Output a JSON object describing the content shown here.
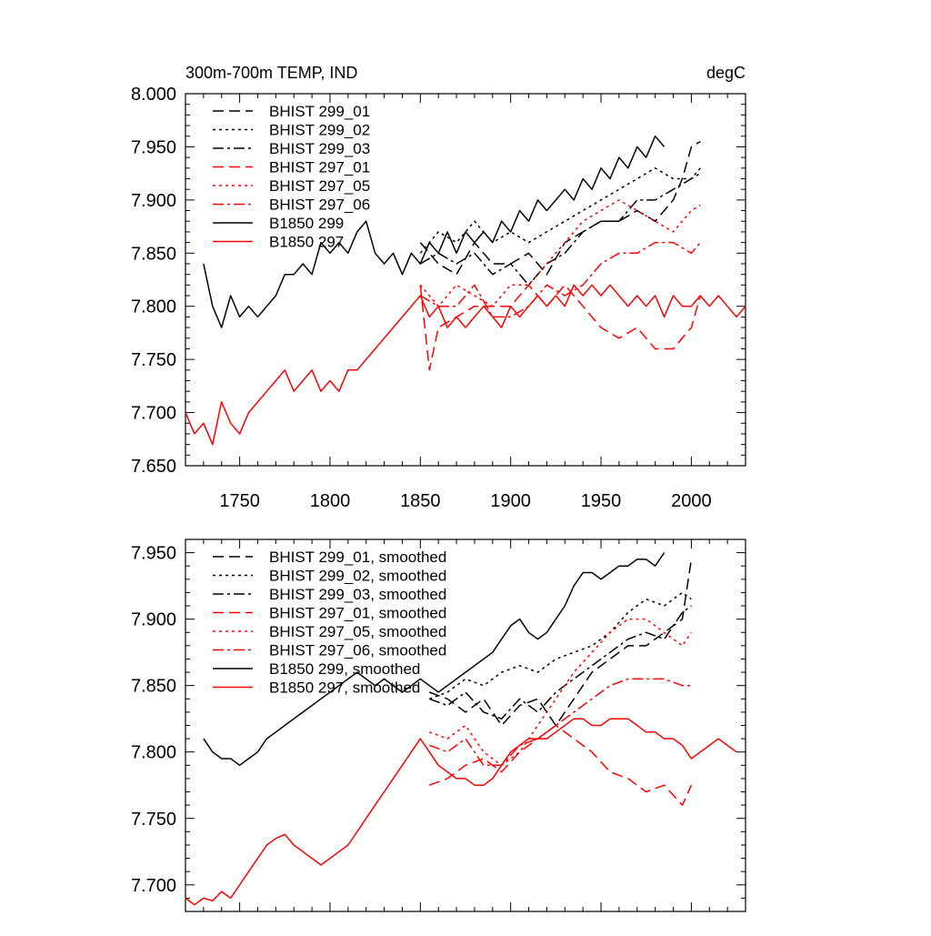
{
  "chart_data": [
    {
      "type": "line",
      "title_left": "300m-700m TEMP, IND",
      "title_right": "degC",
      "xlabel": "",
      "ylabel": "",
      "xlim": [
        1720,
        2030
      ],
      "ylim": [
        7.65,
        8.0
      ],
      "xticks": [
        1750,
        1800,
        1850,
        1900,
        1950,
        2000
      ],
      "xtick_labels": [
        "1750",
        "1800",
        "1850",
        "1900",
        "1950",
        "2000"
      ],
      "yticks": [
        7.65,
        7.7,
        7.75,
        7.8,
        7.85,
        7.9,
        7.95,
        8.0
      ],
      "ytick_labels": [
        "7.650",
        "7.700",
        "7.750",
        "7.800",
        "7.850",
        "7.900",
        "7.950",
        "8.000"
      ],
      "legend_position": "top-left",
      "series": [
        {
          "name": "BHIST 299_01",
          "color": "#000000",
          "dash": "dash",
          "x": [
            1850,
            1860,
            1870,
            1880,
            1890,
            1900,
            1910,
            1920,
            1930,
            1940,
            1950,
            1960,
            1970,
            1980,
            1990,
            1995,
            2000,
            2005
          ],
          "y": [
            7.86,
            7.84,
            7.83,
            7.86,
            7.84,
            7.84,
            7.85,
            7.83,
            7.86,
            7.87,
            7.88,
            7.88,
            7.89,
            7.88,
            7.9,
            7.92,
            7.95,
            7.955
          ]
        },
        {
          "name": "BHIST 299_02",
          "color": "#000000",
          "dash": "dot",
          "x": [
            1850,
            1860,
            1870,
            1880,
            1890,
            1900,
            1910,
            1920,
            1930,
            1940,
            1950,
            1960,
            1970,
            1980,
            1990,
            2000,
            2005
          ],
          "y": [
            7.85,
            7.87,
            7.86,
            7.88,
            7.86,
            7.87,
            7.86,
            7.87,
            7.88,
            7.89,
            7.9,
            7.91,
            7.92,
            7.93,
            7.92,
            7.92,
            7.93
          ]
        },
        {
          "name": "BHIST 299_03",
          "color": "#000000",
          "dash": "dashdot",
          "x": [
            1850,
            1860,
            1870,
            1880,
            1890,
            1900,
            1910,
            1920,
            1930,
            1940,
            1950,
            1960,
            1970,
            1980,
            1990,
            2000,
            2005
          ],
          "y": [
            7.84,
            7.85,
            7.84,
            7.85,
            7.83,
            7.84,
            7.82,
            7.84,
            7.85,
            7.87,
            7.88,
            7.88,
            7.9,
            7.9,
            7.91,
            7.92,
            7.925
          ]
        },
        {
          "name": "BHIST 297_01",
          "color": "#ff0000",
          "dash": "dash",
          "x": [
            1850,
            1855,
            1860,
            1870,
            1880,
            1890,
            1900,
            1910,
            1920,
            1930,
            1940,
            1950,
            1960,
            1970,
            1980,
            1990,
            2000,
            2005
          ],
          "y": [
            7.82,
            7.74,
            7.78,
            7.79,
            7.8,
            7.8,
            7.8,
            7.82,
            7.8,
            7.82,
            7.8,
            7.78,
            7.77,
            7.78,
            7.76,
            7.76,
            7.78,
            7.81
          ]
        },
        {
          "name": "BHIST 297_05",
          "color": "#ff0000",
          "dash": "dot",
          "x": [
            1850,
            1860,
            1870,
            1880,
            1890,
            1900,
            1910,
            1920,
            1930,
            1940,
            1950,
            1960,
            1970,
            1980,
            1990,
            2000,
            2005
          ],
          "y": [
            7.82,
            7.8,
            7.82,
            7.81,
            7.8,
            7.82,
            7.82,
            7.84,
            7.86,
            7.88,
            7.89,
            7.9,
            7.89,
            7.88,
            7.87,
            7.89,
            7.895
          ]
        },
        {
          "name": "BHIST 297_06",
          "color": "#ff0000",
          "dash": "dashdot",
          "x": [
            1850,
            1860,
            1870,
            1880,
            1890,
            1900,
            1910,
            1920,
            1930,
            1940,
            1950,
            1960,
            1970,
            1980,
            1990,
            2000,
            2005
          ],
          "y": [
            7.81,
            7.8,
            7.8,
            7.82,
            7.79,
            7.79,
            7.8,
            7.82,
            7.81,
            7.82,
            7.84,
            7.85,
            7.85,
            7.86,
            7.86,
            7.85,
            7.86
          ]
        },
        {
          "name": "B1850 299",
          "color": "#000000",
          "dash": "solid",
          "x": [
            1730,
            1735,
            1740,
            1745,
            1750,
            1755,
            1760,
            1765,
            1770,
            1775,
            1780,
            1785,
            1790,
            1795,
            1800,
            1805,
            1810,
            1815,
            1820,
            1825,
            1830,
            1835,
            1840,
            1845,
            1850,
            1855,
            1860,
            1865,
            1870,
            1875,
            1880,
            1885,
            1890,
            1895,
            1900,
            1905,
            1910,
            1915,
            1920,
            1925,
            1930,
            1935,
            1940,
            1945,
            1950,
            1955,
            1960,
            1965,
            1970,
            1975,
            1980,
            1985
          ],
          "y": [
            7.84,
            7.8,
            7.78,
            7.81,
            7.79,
            7.8,
            7.79,
            7.8,
            7.81,
            7.83,
            7.83,
            7.84,
            7.83,
            7.86,
            7.85,
            7.86,
            7.85,
            7.87,
            7.88,
            7.85,
            7.84,
            7.85,
            7.83,
            7.85,
            7.84,
            7.86,
            7.85,
            7.87,
            7.85,
            7.87,
            7.86,
            7.87,
            7.86,
            7.88,
            7.87,
            7.89,
            7.88,
            7.9,
            7.89,
            7.9,
            7.91,
            7.9,
            7.92,
            7.91,
            7.93,
            7.92,
            7.94,
            7.93,
            7.95,
            7.94,
            7.96,
            7.95
          ]
        },
        {
          "name": "B1850 297",
          "color": "#ff0000",
          "dash": "solid",
          "x": [
            1720,
            1725,
            1730,
            1735,
            1740,
            1745,
            1750,
            1755,
            1760,
            1765,
            1770,
            1775,
            1780,
            1785,
            1790,
            1795,
            1800,
            1805,
            1810,
            1815,
            1820,
            1825,
            1830,
            1835,
            1840,
            1845,
            1850,
            1855,
            1860,
            1865,
            1870,
            1875,
            1880,
            1885,
            1890,
            1895,
            1900,
            1905,
            1910,
            1915,
            1920,
            1925,
            1930,
            1935,
            1940,
            1945,
            1950,
            1955,
            1960,
            1965,
            1970,
            1975,
            1980,
            1985,
            1990,
            1995,
            2000,
            2005,
            2010,
            2015,
            2020,
            2025,
            2030
          ],
          "y": [
            7.7,
            7.68,
            7.69,
            7.67,
            7.71,
            7.69,
            7.68,
            7.7,
            7.71,
            7.72,
            7.73,
            7.74,
            7.72,
            7.73,
            7.74,
            7.72,
            7.73,
            7.72,
            7.74,
            7.74,
            7.75,
            7.76,
            7.77,
            7.78,
            7.79,
            7.8,
            7.81,
            7.79,
            7.8,
            7.78,
            7.79,
            7.78,
            7.79,
            7.8,
            7.79,
            7.78,
            7.8,
            7.79,
            7.8,
            7.81,
            7.8,
            7.81,
            7.8,
            7.82,
            7.81,
            7.82,
            7.81,
            7.82,
            7.81,
            7.8,
            7.81,
            7.8,
            7.81,
            7.79,
            7.81,
            7.8,
            7.8,
            7.81,
            7.8,
            7.81,
            7.8,
            7.79,
            7.8
          ]
        }
      ]
    },
    {
      "type": "line",
      "xlim": [
        1720,
        2030
      ],
      "ylim": [
        7.68,
        7.96
      ],
      "xticks": [
        1750,
        1800,
        1850,
        1900,
        1950,
        2000
      ],
      "yticks": [
        7.7,
        7.75,
        7.8,
        7.85,
        7.9,
        7.95
      ],
      "ytick_labels": [
        "7.700",
        "7.750",
        "7.800",
        "7.850",
        "7.900",
        "7.950"
      ],
      "legend_position": "top-left",
      "series": [
        {
          "name": "BHIST 299_01, smoothed",
          "color": "#000000",
          "dash": "dash",
          "x": [
            1855,
            1865,
            1875,
            1885,
            1895,
            1905,
            1915,
            1925,
            1935,
            1945,
            1955,
            1965,
            1975,
            1985,
            1995,
            2000
          ],
          "y": [
            7.845,
            7.84,
            7.83,
            7.84,
            7.82,
            7.835,
            7.84,
            7.82,
            7.84,
            7.86,
            7.87,
            7.88,
            7.88,
            7.89,
            7.9,
            7.945
          ]
        },
        {
          "name": "BHIST 299_02, smoothed",
          "color": "#000000",
          "dash": "dot",
          "x": [
            1855,
            1865,
            1875,
            1885,
            1895,
            1905,
            1915,
            1925,
            1935,
            1945,
            1955,
            1965,
            1975,
            1985,
            1995,
            2000
          ],
          "y": [
            7.84,
            7.845,
            7.855,
            7.85,
            7.86,
            7.865,
            7.86,
            7.87,
            7.875,
            7.88,
            7.89,
            7.905,
            7.915,
            7.91,
            7.92,
            7.915
          ]
        },
        {
          "name": "BHIST 299_03, smoothed",
          "color": "#000000",
          "dash": "dashdot",
          "x": [
            1855,
            1865,
            1875,
            1885,
            1895,
            1905,
            1915,
            1925,
            1935,
            1945,
            1955,
            1965,
            1975,
            1985,
            1995,
            2000
          ],
          "y": [
            7.84,
            7.835,
            7.845,
            7.83,
            7.825,
            7.84,
            7.83,
            7.845,
            7.855,
            7.865,
            7.875,
            7.885,
            7.89,
            7.885,
            7.905,
            7.91
          ]
        },
        {
          "name": "BHIST 297_01, smoothed",
          "color": "#ff0000",
          "dash": "dash",
          "x": [
            1855,
            1865,
            1875,
            1885,
            1895,
            1905,
            1915,
            1925,
            1935,
            1945,
            1955,
            1965,
            1975,
            1985,
            1995,
            2000
          ],
          "y": [
            7.775,
            7.78,
            7.79,
            7.795,
            7.785,
            7.8,
            7.81,
            7.82,
            7.81,
            7.8,
            7.785,
            7.78,
            7.77,
            7.775,
            7.76,
            7.775
          ]
        },
        {
          "name": "BHIST 297_05, smoothed",
          "color": "#ff0000",
          "dash": "dot",
          "x": [
            1855,
            1865,
            1875,
            1885,
            1895,
            1905,
            1915,
            1925,
            1935,
            1945,
            1955,
            1965,
            1975,
            1985,
            1995,
            2000
          ],
          "y": [
            7.815,
            7.81,
            7.82,
            7.8,
            7.79,
            7.8,
            7.82,
            7.84,
            7.86,
            7.875,
            7.89,
            7.9,
            7.9,
            7.89,
            7.88,
            7.89
          ]
        },
        {
          "name": "BHIST 297_06, smoothed",
          "color": "#ff0000",
          "dash": "dashdot",
          "x": [
            1855,
            1865,
            1875,
            1885,
            1895,
            1905,
            1915,
            1925,
            1935,
            1945,
            1955,
            1965,
            1975,
            1985,
            1995,
            2000
          ],
          "y": [
            7.805,
            7.8,
            7.81,
            7.79,
            7.79,
            7.805,
            7.81,
            7.82,
            7.83,
            7.84,
            7.85,
            7.855,
            7.855,
            7.855,
            7.85,
            7.85
          ]
        },
        {
          "name": "B1850 299, smoothed",
          "color": "#000000",
          "dash": "solid",
          "x": [
            1730,
            1735,
            1740,
            1745,
            1750,
            1755,
            1760,
            1765,
            1770,
            1775,
            1780,
            1785,
            1790,
            1795,
            1800,
            1805,
            1810,
            1815,
            1820,
            1825,
            1830,
            1835,
            1840,
            1845,
            1850,
            1855,
            1860,
            1865,
            1870,
            1875,
            1880,
            1885,
            1890,
            1895,
            1900,
            1905,
            1910,
            1915,
            1920,
            1925,
            1930,
            1935,
            1940,
            1945,
            1950,
            1955,
            1960,
            1965,
            1970,
            1975,
            1980,
            1985
          ],
          "y": [
            7.81,
            7.8,
            7.795,
            7.795,
            7.79,
            7.795,
            7.8,
            7.81,
            7.815,
            7.82,
            7.825,
            7.83,
            7.835,
            7.84,
            7.845,
            7.85,
            7.855,
            7.86,
            7.855,
            7.85,
            7.855,
            7.85,
            7.845,
            7.85,
            7.855,
            7.85,
            7.845,
            7.85,
            7.855,
            7.86,
            7.865,
            7.87,
            7.875,
            7.885,
            7.895,
            7.9,
            7.89,
            7.885,
            7.89,
            7.9,
            7.91,
            7.925,
            7.935,
            7.935,
            7.93,
            7.935,
            7.94,
            7.94,
            7.945,
            7.945,
            7.94,
            7.95
          ]
        },
        {
          "name": "B1850 297, smoothed",
          "color": "#ff0000",
          "dash": "solid",
          "x": [
            1720,
            1725,
            1730,
            1735,
            1740,
            1745,
            1750,
            1755,
            1760,
            1765,
            1770,
            1775,
            1780,
            1785,
            1790,
            1795,
            1800,
            1805,
            1810,
            1815,
            1820,
            1825,
            1830,
            1835,
            1840,
            1845,
            1850,
            1855,
            1860,
            1865,
            1870,
            1875,
            1880,
            1885,
            1890,
            1895,
            1900,
            1905,
            1910,
            1915,
            1920,
            1925,
            1930,
            1935,
            1940,
            1945,
            1950,
            1955,
            1960,
            1965,
            1970,
            1975,
            1980,
            1985,
            1990,
            1995,
            2000,
            2005,
            2010,
            2015,
            2020,
            2025
          ],
          "y": [
            7.69,
            7.685,
            7.69,
            7.688,
            7.695,
            7.69,
            7.7,
            7.71,
            7.72,
            7.73,
            7.735,
            7.738,
            7.73,
            7.725,
            7.72,
            7.715,
            7.72,
            7.725,
            7.73,
            7.74,
            7.75,
            7.76,
            7.77,
            7.78,
            7.79,
            7.8,
            7.81,
            7.8,
            7.79,
            7.785,
            7.78,
            7.78,
            7.775,
            7.775,
            7.78,
            7.79,
            7.8,
            7.805,
            7.81,
            7.81,
            7.81,
            7.815,
            7.82,
            7.825,
            7.825,
            7.82,
            7.82,
            7.825,
            7.825,
            7.825,
            7.82,
            7.815,
            7.815,
            7.81,
            7.81,
            7.805,
            7.795,
            7.8,
            7.805,
            7.81,
            7.805,
            7.8
          ]
        }
      ]
    }
  ]
}
